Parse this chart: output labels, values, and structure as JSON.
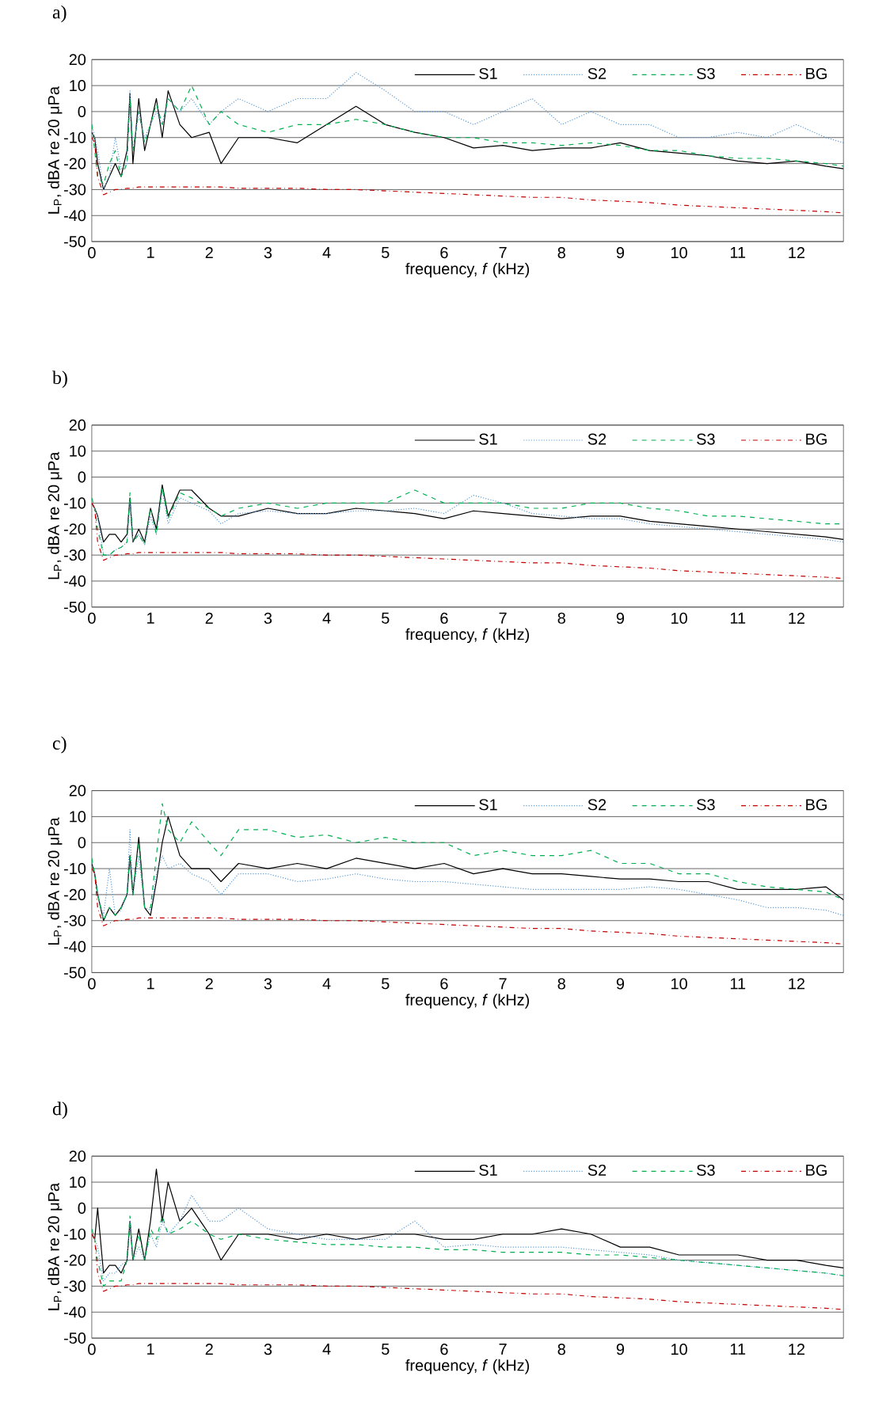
{
  "chart_data": [
    {
      "type": "line",
      "title": "a)",
      "xlabel": "frequency, *f* (kHz)",
      "ylabel": "L$_{P}$, dBA re 20 μPa",
      "xlim": [
        0,
        12.8
      ],
      "xticks": [
        0,
        1,
        2,
        3,
        4,
        5,
        6,
        7,
        8,
        9,
        10,
        11,
        12
      ],
      "ylim": [
        -50,
        20
      ],
      "yticks": [
        -50,
        -40,
        -30,
        -20,
        -10,
        0,
        10,
        20
      ],
      "grid": "y",
      "legend": "top right",
      "marker": "none",
      "x": [
        0,
        0.05,
        0.1,
        0.2,
        0.3,
        0.4,
        0.5,
        0.6,
        0.65,
        0.7,
        0.8,
        0.9,
        1.0,
        1.1,
        1.2,
        1.3,
        1.5,
        1.7,
        2.0,
        2.2,
        2.5,
        3,
        3.5,
        4,
        4.5,
        5,
        5.5,
        6,
        6.5,
        7,
        7.5,
        8,
        8.5,
        9,
        9.5,
        10,
        10.5,
        11,
        11.5,
        12,
        12.5,
        12.8
      ],
      "series": [
        {
          "name": "S1",
          "color": "#000000",
          "line_style": "solid",
          "values": [
            -8,
            -10,
            -20,
            -30,
            -25,
            -20,
            -25,
            -15,
            7,
            -20,
            5,
            -15,
            -5,
            5,
            -10,
            8,
            -5,
            -10,
            -8,
            -20,
            -10,
            -10,
            -12,
            -5,
            2,
            -5,
            -8,
            -10,
            -14,
            -13,
            -15,
            -14,
            -14,
            -12,
            -15,
            -16,
            -17,
            -19,
            -20,
            -19,
            -21,
            -22
          ]
        },
        {
          "name": "S2",
          "color": "#5b9bd5",
          "line_style": "dotted",
          "values": [
            -5,
            -10,
            -15,
            -30,
            -25,
            -10,
            -22,
            -20,
            8,
            -15,
            0,
            -10,
            -5,
            0,
            -5,
            5,
            0,
            5,
            -5,
            0,
            5,
            0,
            5,
            5,
            15,
            8,
            0,
            0,
            -5,
            0,
            5,
            -5,
            0,
            -5,
            -5,
            -10,
            -10,
            -8,
            -10,
            -5,
            -10,
            -12
          ]
        },
        {
          "name": "S3",
          "color": "#00b050",
          "line_style": "dashed",
          "values": [
            -5,
            -15,
            -25,
            -28,
            -20,
            -15,
            -25,
            -20,
            5,
            -15,
            0,
            -12,
            -5,
            3,
            -5,
            5,
            0,
            10,
            -5,
            0,
            -5,
            -8,
            -5,
            -5,
            -3,
            -5,
            -8,
            -10,
            -10,
            -12,
            -12,
            -13,
            -12,
            -13,
            -15,
            -15,
            -17,
            -18,
            -18,
            -19,
            -20,
            -21
          ]
        },
        {
          "name": "BG",
          "color": "#c00000",
          "line_style": "dashdot",
          "values": [
            -10,
            -12,
            -25,
            -32,
            -31,
            -30,
            -30,
            -29.5,
            -29.5,
            -29.5,
            -29,
            -29,
            -29,
            -29,
            -29,
            -29,
            -29,
            -29,
            -29,
            -29,
            -29.5,
            -29.5,
            -29.5,
            -30,
            -30,
            -30.5,
            -31,
            -31.5,
            -32,
            -32.5,
            -33,
            -33,
            -34,
            -34.5,
            -35,
            -36,
            -36.5,
            -37,
            -37.5,
            -38,
            -38.5,
            -39
          ]
        }
      ]
    },
    {
      "type": "line",
      "title": "b)",
      "xlabel": "frequency, *f* (kHz)",
      "ylabel": "L$_{P}$, dBA re 20 μPa",
      "xlim": [
        0,
        12.8
      ],
      "xticks": [
        0,
        1,
        2,
        3,
        4,
        5,
        6,
        7,
        8,
        9,
        10,
        11,
        12
      ],
      "ylim": [
        -50,
        20
      ],
      "yticks": [
        -50,
        -40,
        -30,
        -20,
        -10,
        0,
        10,
        20
      ],
      "grid": "y",
      "legend": "top right",
      "marker": "none",
      "x": [
        0,
        0.05,
        0.1,
        0.2,
        0.3,
        0.4,
        0.5,
        0.6,
        0.65,
        0.7,
        0.8,
        0.9,
        1.0,
        1.1,
        1.2,
        1.3,
        1.5,
        1.7,
        2.0,
        2.2,
        2.5,
        3,
        3.5,
        4,
        4.5,
        5,
        5.5,
        6,
        6.5,
        7,
        7.5,
        8,
        8.5,
        9,
        9.5,
        10,
        10.5,
        11,
        11.5,
        12,
        12.5,
        12.8
      ],
      "series": [
        {
          "name": "S1",
          "color": "#000000",
          "line_style": "solid",
          "values": [
            -10,
            -12,
            -15,
            -25,
            -22,
            -22,
            -25,
            -22,
            -8,
            -25,
            -20,
            -25,
            -12,
            -20,
            -3,
            -15,
            -5,
            -5,
            -12,
            -15,
            -15,
            -12,
            -14,
            -14,
            -12,
            -13,
            -14,
            -16,
            -13,
            -14,
            -15,
            -16,
            -15,
            -15,
            -17,
            -18,
            -19,
            -20,
            -21,
            -22,
            -23,
            -24
          ]
        },
        {
          "name": "S2",
          "color": "#5b9bd5",
          "line_style": "dotted",
          "values": [
            -10,
            -12,
            -15,
            -30,
            -30,
            -28,
            -27,
            -25,
            -10,
            -25,
            -22,
            -26,
            -15,
            -22,
            -5,
            -18,
            -8,
            -10,
            -13,
            -18,
            -14,
            -13,
            -14,
            -14,
            -13,
            -13,
            -12,
            -14,
            -7,
            -10,
            -14,
            -15,
            -16,
            -16,
            -18,
            -19,
            -20,
            -21,
            -22,
            -23,
            -24,
            -25
          ]
        },
        {
          "name": "S3",
          "color": "#00b050",
          "line_style": "dashed",
          "values": [
            -8,
            -12,
            -20,
            -30,
            -30,
            -28,
            -27,
            -25,
            -6,
            -25,
            -22,
            -26,
            -12,
            -22,
            -4,
            -16,
            -6,
            -8,
            -12,
            -15,
            -12,
            -10,
            -12,
            -10,
            -10,
            -10,
            -5,
            -10,
            -10,
            -10,
            -12,
            -12,
            -10,
            -10,
            -12,
            -13,
            -15,
            -15,
            -16,
            -17,
            -18,
            -18
          ]
        },
        {
          "name": "BG",
          "color": "#c00000",
          "line_style": "dashdot",
          "values": [
            -10,
            -12,
            -25,
            -32,
            -31,
            -30,
            -30,
            -29.5,
            -29.5,
            -29.5,
            -29,
            -29,
            -29,
            -29,
            -29,
            -29,
            -29,
            -29,
            -29,
            -29,
            -29.5,
            -29.5,
            -29.5,
            -30,
            -30,
            -30.5,
            -31,
            -31.5,
            -32,
            -32.5,
            -33,
            -33,
            -34,
            -34.5,
            -35,
            -36,
            -36.5,
            -37,
            -37.5,
            -38,
            -38.5,
            -39
          ]
        }
      ]
    },
    {
      "type": "line",
      "title": "c)",
      "xlabel": "frequency, *f* (kHz)",
      "ylabel": "L$_{P}$, dBA re 20 μPa",
      "xlim": [
        0,
        12.8
      ],
      "xticks": [
        0,
        1,
        2,
        3,
        4,
        5,
        6,
        7,
        8,
        9,
        10,
        11,
        12
      ],
      "ylim": [
        -50,
        20
      ],
      "yticks": [
        -50,
        -40,
        -30,
        -20,
        -10,
        0,
        10,
        20
      ],
      "grid": "y",
      "legend": "top right",
      "marker": "none",
      "x": [
        0,
        0.05,
        0.1,
        0.2,
        0.3,
        0.4,
        0.5,
        0.6,
        0.65,
        0.7,
        0.8,
        0.9,
        1.0,
        1.1,
        1.2,
        1.3,
        1.5,
        1.7,
        2.0,
        2.2,
        2.5,
        3,
        3.5,
        4,
        4.5,
        5,
        5.5,
        6,
        6.5,
        7,
        7.5,
        8,
        8.5,
        9,
        9.5,
        10,
        10.5,
        11,
        11.5,
        12,
        12.5,
        12.8
      ],
      "series": [
        {
          "name": "S1",
          "color": "#000000",
          "line_style": "solid",
          "values": [
            -8,
            -12,
            -20,
            -30,
            -25,
            -28,
            -25,
            -20,
            -5,
            -20,
            2,
            -25,
            -28,
            -15,
            0,
            10,
            -5,
            -10,
            -10,
            -15,
            -8,
            -10,
            -8,
            -10,
            -6,
            -8,
            -10,
            -8,
            -12,
            -10,
            -12,
            -12,
            -13,
            -14,
            -14,
            -15,
            -15,
            -18,
            -18,
            -18,
            -17,
            -22
          ]
        },
        {
          "name": "S2",
          "color": "#5b9bd5",
          "line_style": "dotted",
          "values": [
            -8,
            -12,
            -20,
            -28,
            -10,
            -28,
            -26,
            -20,
            5,
            -20,
            -5,
            -25,
            -26,
            -12,
            -5,
            -10,
            -8,
            -12,
            -15,
            -20,
            -12,
            -12,
            -15,
            -14,
            -12,
            -14,
            -15,
            -15,
            -16,
            -17,
            -18,
            -18,
            -18,
            -18,
            -17,
            -18,
            -20,
            -22,
            -25,
            -25,
            -26,
            -28
          ]
        },
        {
          "name": "S3",
          "color": "#00b050",
          "line_style": "dashed",
          "values": [
            -6,
            -12,
            -20,
            -30,
            -25,
            -28,
            -25,
            -20,
            -5,
            -20,
            0,
            -25,
            -25,
            -5,
            15,
            5,
            0,
            8,
            0,
            -5,
            5,
            5,
            2,
            3,
            0,
            2,
            0,
            0,
            -5,
            -3,
            -5,
            -5,
            -3,
            -8,
            -8,
            -12,
            -12,
            -15,
            -17,
            -18,
            -19,
            -22
          ]
        },
        {
          "name": "BG",
          "color": "#c00000",
          "line_style": "dashdot",
          "values": [
            -10,
            -12,
            -25,
            -32,
            -31,
            -30,
            -30,
            -29.5,
            -29.5,
            -29.5,
            -29,
            -29,
            -29,
            -29,
            -29,
            -29,
            -29,
            -29,
            -29,
            -29,
            -29.5,
            -29.5,
            -29.5,
            -30,
            -30,
            -30.5,
            -31,
            -31.5,
            -32,
            -32.5,
            -33,
            -33,
            -34,
            -34.5,
            -35,
            -36,
            -36.5,
            -37,
            -37.5,
            -38,
            -38.5,
            -39
          ]
        }
      ]
    },
    {
      "type": "line",
      "title": "d)",
      "xlabel": "frequency, *f* (kHz)",
      "ylabel": "L$_{P}$, dBA re 20 μPa",
      "xlim": [
        0,
        12.8
      ],
      "xticks": [
        0,
        1,
        2,
        3,
        4,
        5,
        6,
        7,
        8,
        9,
        10,
        11,
        12
      ],
      "ylim": [
        -50,
        20
      ],
      "yticks": [
        -50,
        -40,
        -30,
        -20,
        -10,
        0,
        10,
        20
      ],
      "grid": "y",
      "legend": "top right",
      "marker": "none",
      "x": [
        0,
        0.05,
        0.1,
        0.2,
        0.3,
        0.4,
        0.5,
        0.6,
        0.65,
        0.7,
        0.8,
        0.9,
        1.0,
        1.1,
        1.2,
        1.3,
        1.5,
        1.7,
        2.0,
        2.2,
        2.5,
        3,
        3.5,
        4,
        4.5,
        5,
        5.5,
        6,
        6.5,
        7,
        7.5,
        8,
        8.5,
        9,
        9.5,
        10,
        10.5,
        11,
        11.5,
        12,
        12.5,
        12.8
      ],
      "series": [
        {
          "name": "S1",
          "color": "#000000",
          "line_style": "solid",
          "values": [
            -10,
            -12,
            0,
            -25,
            -22,
            -22,
            -25,
            -20,
            -5,
            -20,
            -8,
            -20,
            -5,
            15,
            -5,
            10,
            -5,
            0,
            -10,
            -20,
            -10,
            -10,
            -12,
            -10,
            -12,
            -10,
            -10,
            -12,
            -12,
            -10,
            -10,
            -8,
            -10,
            -15,
            -15,
            -18,
            -18,
            -18,
            -20,
            -20,
            -22,
            -23
          ]
        },
        {
          "name": "S2",
          "color": "#5b9bd5",
          "line_style": "dotted",
          "values": [
            -10,
            -12,
            -15,
            -28,
            -25,
            -25,
            -22,
            -20,
            -5,
            -20,
            -15,
            -20,
            -10,
            -15,
            -5,
            -10,
            -5,
            5,
            -5,
            -5,
            0,
            -8,
            -10,
            -12,
            -12,
            -12,
            -5,
            -15,
            -14,
            -15,
            -15,
            -15,
            -16,
            -17,
            -18,
            -20,
            -21,
            -22,
            -23,
            -24,
            -25,
            -26
          ]
        },
        {
          "name": "S3",
          "color": "#00b050",
          "line_style": "dashed",
          "values": [
            -8,
            -12,
            -20,
            -30,
            -28,
            -28,
            -28,
            -20,
            -3,
            -20,
            -10,
            -20,
            -8,
            -12,
            -3,
            -10,
            -8,
            -5,
            -10,
            -12,
            -10,
            -12,
            -13,
            -14,
            -14,
            -15,
            -15,
            -16,
            -16,
            -17,
            -17,
            -17,
            -18,
            -18,
            -19,
            -20,
            -21,
            -22,
            -23,
            -24,
            -25,
            -26
          ]
        },
        {
          "name": "BG",
          "color": "#c00000",
          "line_style": "dashdot",
          "values": [
            -10,
            -12,
            -25,
            -32,
            -31,
            -30,
            -30,
            -29.5,
            -29.5,
            -29.5,
            -29,
            -29,
            -29,
            -29,
            -29,
            -29,
            -29,
            -29,
            -29,
            -29,
            -29.5,
            -29.5,
            -29.5,
            -30,
            -30,
            -30.5,
            -31,
            -31.5,
            -32,
            -32.5,
            -33,
            -33,
            -34,
            -34.5,
            -35,
            -36,
            -36.5,
            -37,
            -37.5,
            -38,
            -38.5,
            -39
          ]
        }
      ]
    }
  ]
}
